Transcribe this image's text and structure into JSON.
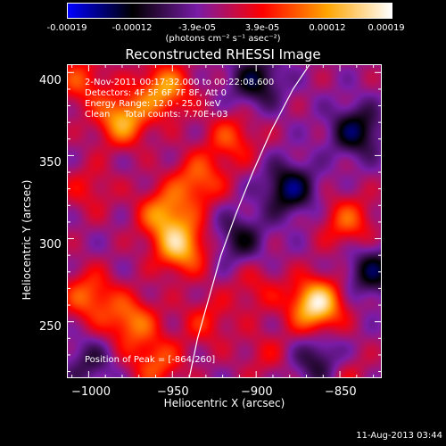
{
  "colorbar": {
    "tick_labels": [
      "-0.00019",
      "-0.00012",
      "-3.9e-05",
      "3.9e-05",
      "0.00012",
      "0.00019"
    ],
    "units_text": "(photons cm⁻² s⁻¹ asec⁻²)",
    "colormap": [
      "#0000ff",
      "#000000",
      "#7a1ca8",
      "#ff0000",
      "#ffa500",
      "#ffffff"
    ]
  },
  "chart_data": {
    "type": "heatmap",
    "title": "Reconstructed RHESSI Image",
    "xlabel": "Heliocentric X (arcsec)",
    "ylabel": "Heliocentric Y (arcsec)",
    "xlim": [
      -1013,
      -825
    ],
    "ylim": [
      216,
      405
    ],
    "x_ticks": [
      -1000,
      -950,
      -900,
      -850
    ],
    "y_ticks": [
      250,
      300,
      350,
      400
    ],
    "value_range": [
      -0.00019,
      0.00019
    ],
    "peak": [
      -864,
      260
    ],
    "limb_line": [
      [
        -940,
        216
      ],
      [
        -935,
        240
      ],
      [
        -928,
        265
      ],
      [
        -921,
        290
      ],
      [
        -912,
        315
      ],
      [
        -902,
        340
      ],
      [
        -891,
        365
      ],
      [
        -878,
        390
      ],
      [
        -868,
        405
      ]
    ],
    "hot_spots": [
      {
        "x": -864,
        "y": 260,
        "value": 0.00019
      },
      {
        "x": -945,
        "y": 295,
        "value": 0.00015
      },
      {
        "x": -955,
        "y": 315,
        "value": 0.00012
      },
      {
        "x": -980,
        "y": 372,
        "value": 0.00014
      },
      {
        "x": -935,
        "y": 335,
        "value": 0.0001
      },
      {
        "x": -1000,
        "y": 265,
        "value": 0.0001
      },
      {
        "x": -960,
        "y": 225,
        "value": 9e-05
      },
      {
        "x": -955,
        "y": 390,
        "value": 0.00013
      },
      {
        "x": -975,
        "y": 250,
        "value": 0.00011
      },
      {
        "x": -845,
        "y": 310,
        "value": 9e-05
      },
      {
        "x": -1005,
        "y": 395,
        "value": 8e-05
      },
      {
        "x": -915,
        "y": 360,
        "value": 8e-05
      },
      {
        "x": -930,
        "y": 250,
        "value": 6e-05
      },
      {
        "x": -1000,
        "y": 330,
        "value": 5e-05
      },
      {
        "x": -900,
        "y": 270,
        "value": 5e-05
      },
      {
        "x": -895,
        "y": 230,
        "value": 4e-05
      },
      {
        "x": -850,
        "y": 220,
        "value": 7e-05
      }
    ],
    "cold_spots": [
      {
        "x": -880,
        "y": 330,
        "value": -0.00012
      },
      {
        "x": -840,
        "y": 365,
        "value": -0.00011
      },
      {
        "x": -830,
        "y": 280,
        "value": -0.0001
      },
      {
        "x": -860,
        "y": 225,
        "value": -0.00011
      },
      {
        "x": -900,
        "y": 395,
        "value": -0.0001
      },
      {
        "x": -910,
        "y": 300,
        "value": -8e-05
      },
      {
        "x": -1000,
        "y": 225,
        "value": -6e-05
      }
    ]
  },
  "info": {
    "line1": "2-Nov-2011 00:17:32.000 to 00:22:08.600",
    "line2": "Detectors: 4F 5F 6F 7F 8F, Att 0",
    "line3": "Energy Range: 12.0 - 25.0 keV",
    "line4": "Clean     Total counts: 7.70E+03",
    "peak_text": "Position of Peak = [-864,260]"
  },
  "tick_labels": {
    "y": [
      "250",
      "300",
      "350",
      "400"
    ],
    "x": [
      "−1000",
      "−950",
      "−900",
      "−850"
    ]
  },
  "footer": {
    "timestamp": "11-Aug-2013 03:44"
  }
}
